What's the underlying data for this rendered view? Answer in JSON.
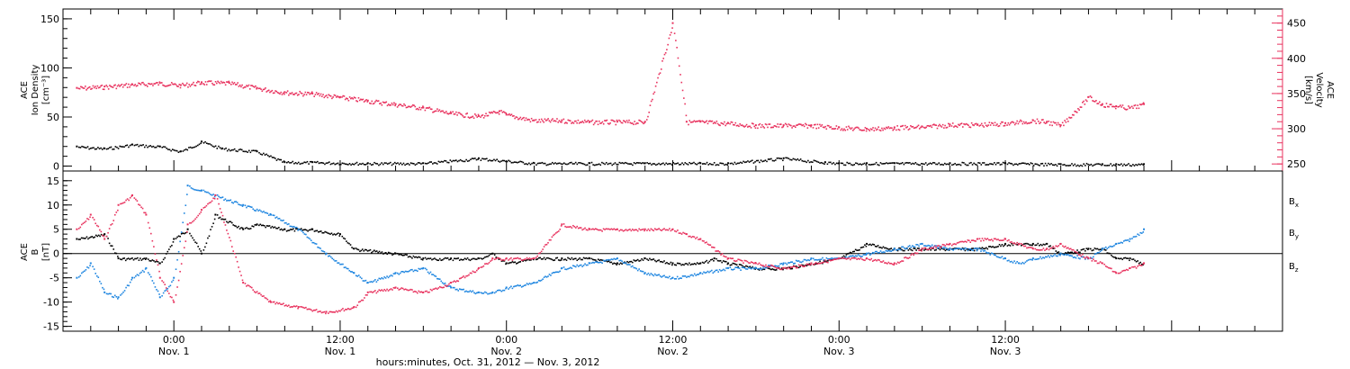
{
  "colors": {
    "black": "#000000",
    "pink": "#e8325e",
    "blue": "#1f86e0"
  },
  "chart_data": [
    {
      "type": "scatter",
      "panel": "top",
      "ylabel_left": [
        "ACE",
        "Ion Density",
        "[cm⁻³]"
      ],
      "ylabel_right": [
        "ACE",
        "Velocity",
        "[km/s]"
      ],
      "ylim_left": [
        -5,
        160
      ],
      "yticks_left": [
        "150",
        "100",
        "50",
        "0"
      ],
      "ylim_right": [
        240,
        470
      ],
      "yticks_right": [
        "450",
        "400",
        "350",
        "300",
        "250"
      ],
      "series": [
        {
          "role": "density",
          "color": "black",
          "axis": "left",
          "x": [
            -7,
            -5,
            -3,
            -1,
            0.5,
            2,
            3.5,
            6,
            8,
            10,
            14,
            18,
            22,
            26,
            30,
            34,
            38,
            40,
            44,
            47,
            48,
            50,
            52,
            56,
            60,
            64,
            67,
            68,
            70
          ],
          "y": [
            20,
            18,
            22,
            20,
            15,
            25,
            18,
            15,
            4,
            4,
            3,
            3,
            8,
            3,
            3,
            3,
            3,
            3,
            8,
            4,
            3,
            3,
            3,
            3,
            3,
            2,
            2,
            2,
            2
          ]
        },
        {
          "role": "velocity",
          "color": "pink",
          "axis": "right",
          "x": [
            -7,
            -5,
            -3,
            -1,
            0.5,
            2,
            4,
            6,
            8,
            10,
            12,
            14,
            16,
            18,
            20,
            22,
            23.5,
            24,
            26,
            28,
            30,
            32,
            34,
            36,
            37,
            38,
            40,
            42,
            44,
            46,
            48,
            50,
            52,
            54,
            56,
            58,
            60,
            62,
            63,
            64,
            66,
            67,
            68,
            69,
            70
          ],
          "y": [
            358,
            360,
            363,
            365,
            362,
            366,
            365,
            358,
            352,
            350,
            345,
            340,
            335,
            330,
            322,
            318,
            325,
            320,
            312,
            312,
            310,
            310,
            310,
            450,
            310,
            310,
            308,
            305,
            305,
            305,
            302,
            300,
            302,
            303,
            306,
            306,
            308,
            312,
            310,
            305,
            345,
            335,
            332,
            330,
            335
          ]
        }
      ]
    },
    {
      "type": "line",
      "panel": "bottom",
      "ylabel": [
        "ACE",
        "B",
        "[nT]"
      ],
      "ylim": [
        -16,
        17
      ],
      "yticks": [
        "15",
        "10",
        "5",
        "0",
        "-5",
        "-10",
        "-15"
      ],
      "legend": [
        "Bx",
        "By",
        "Bz"
      ],
      "series": [
        {
          "name": "Bx",
          "color": "black",
          "x": [
            -7,
            -5,
            -4,
            -2,
            -1,
            0,
            1,
            2,
            3,
            5,
            6,
            8,
            10,
            12,
            13,
            16,
            18,
            20,
            22,
            23,
            24,
            26,
            28,
            30,
            32,
            34,
            36,
            38,
            39,
            40,
            42,
            44,
            46,
            48,
            50,
            52,
            54,
            56,
            58,
            60,
            61,
            62,
            63,
            64,
            66,
            67,
            68,
            69,
            70
          ],
          "y": [
            3,
            4,
            -1,
            -1,
            -2,
            3,
            5,
            0,
            8,
            5,
            6,
            5,
            5,
            4,
            1,
            0,
            -1,
            -1,
            -1,
            0,
            -2,
            -1,
            -1,
            -1,
            -2,
            -1,
            -2,
            -2,
            -1,
            -2,
            -3,
            -3,
            -2,
            -1,
            2,
            1,
            1,
            1,
            1,
            2,
            2,
            2,
            2,
            0,
            1,
            1,
            -1,
            -1,
            -2
          ]
        },
        {
          "name": "By",
          "color": "blue",
          "x": [
            -7,
            -6,
            -5,
            -4,
            -3,
            -2,
            -1,
            0,
            1,
            2,
            3,
            5,
            7,
            9,
            11,
            13,
            14,
            16,
            18,
            20,
            22,
            23,
            24,
            26,
            28,
            30,
            32,
            34,
            36,
            38,
            40,
            42,
            44,
            46,
            48,
            50,
            52,
            54,
            56,
            58,
            60,
            61,
            62,
            64,
            66,
            67,
            68,
            69,
            70
          ],
          "y": [
            -5,
            -2,
            -8,
            -9,
            -5,
            -3,
            -9,
            -5,
            14,
            13,
            12,
            10,
            8,
            5,
            0,
            -4,
            -6,
            -4,
            -3,
            -7,
            -8,
            -8,
            -7,
            -6,
            -3,
            -2,
            -1,
            -4,
            -5,
            -4,
            -3,
            -3,
            -2,
            -1,
            -1,
            0,
            1,
            2,
            1,
            1,
            -1,
            -2,
            -1,
            0,
            -1,
            1,
            2,
            3,
            5
          ]
        },
        {
          "name": "Bz",
          "color": "pink",
          "x": [
            -7,
            -6,
            -5,
            -4,
            -3,
            -2,
            -1,
            0,
            1,
            2,
            3,
            5,
            7,
            9,
            11,
            13,
            14,
            16,
            18,
            20,
            22,
            23,
            24,
            26,
            28,
            30,
            32,
            34,
            36,
            37,
            38,
            40,
            42,
            44,
            46,
            48,
            50,
            52,
            54,
            56,
            58,
            60,
            61,
            62,
            63,
            64,
            66,
            67,
            68,
            69,
            70
          ],
          "y": [
            5,
            8,
            3,
            10,
            12,
            8,
            -5,
            -10,
            6,
            9,
            12,
            -6,
            -10,
            -11,
            -12,
            -11,
            -8,
            -7,
            -8,
            -6,
            -3,
            -1,
            -1,
            -1,
            6,
            5,
            5,
            5,
            5,
            4,
            3,
            -1,
            -2,
            -3,
            -2,
            -1,
            -1,
            -2,
            1,
            2,
            3,
            3,
            2,
            1,
            1,
            2,
            -1,
            -2,
            -4,
            -3,
            -2
          ]
        }
      ]
    }
  ],
  "x_axis": {
    "range_hours": [
      -8,
      80
    ],
    "major_ticks": [
      {
        "time": "0:00",
        "date": "Nov. 1",
        "x": 0
      },
      {
        "time": "12:00",
        "date": "Nov. 1",
        "x": 12
      },
      {
        "time": "0:00",
        "date": "Nov. 2",
        "x": 24
      },
      {
        "time": "12:00",
        "date": "Nov. 2",
        "x": 36
      },
      {
        "time": "0:00",
        "date": "Nov. 3",
        "x": 48
      },
      {
        "time": "12:00",
        "date": "Nov. 3",
        "x": 60
      }
    ],
    "xlabel": "hours:minutes, Oct. 31, 2012 — Nov. 3, 2012"
  },
  "legend_labels": [
    {
      "base": "B",
      "sub": "x"
    },
    {
      "base": "B",
      "sub": "y"
    },
    {
      "base": "B",
      "sub": "z"
    }
  ]
}
